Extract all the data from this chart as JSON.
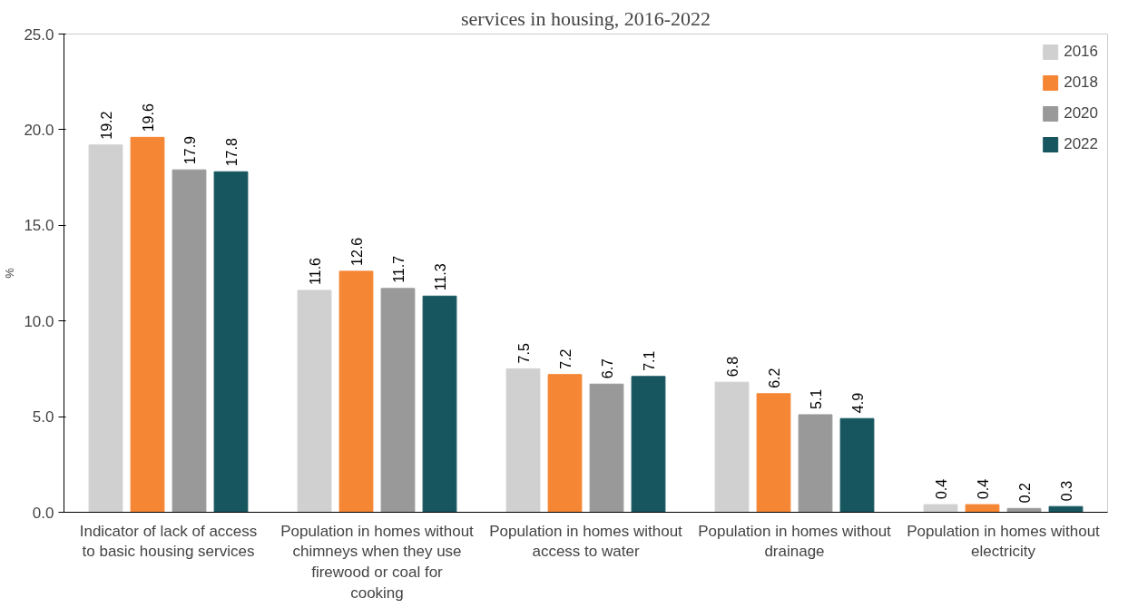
{
  "chart_data": {
    "type": "bar",
    "title": "services in housing, 2016-2022",
    "ylabel": "%",
    "categories": [
      "Indicator of lack of access to basic housing services",
      "Population in homes without chimneys when they use firewood or coal for cooking",
      "Population in homes without access to water",
      "Population in homes without drainage",
      "Population in homes without electricity"
    ],
    "series": [
      {
        "name": "2016",
        "color": "#d0d0d0",
        "values": [
          19.2,
          11.6,
          7.5,
          6.8,
          0.4
        ]
      },
      {
        "name": "2018",
        "color": "#f58634",
        "values": [
          19.6,
          12.6,
          7.2,
          6.2,
          0.4
        ]
      },
      {
        "name": "2020",
        "color": "#999999",
        "values": [
          17.9,
          11.7,
          6.7,
          5.1,
          0.2
        ]
      },
      {
        "name": "2022",
        "color": "#17565f",
        "values": [
          17.8,
          11.3,
          7.1,
          4.9,
          0.3
        ]
      }
    ],
    "ylim": [
      0,
      25
    ],
    "yticks": [
      {
        "value": 0,
        "label": "0.0"
      },
      {
        "value": 5,
        "label": "5.0"
      },
      {
        "value": 10,
        "label": "10.0"
      },
      {
        "value": 15,
        "label": "15.0"
      },
      {
        "value": 20,
        "label": "20.0"
      },
      {
        "value": 25,
        "label": "25.0"
      }
    ],
    "data_labels": true,
    "legend": "top right",
    "grid": false
  }
}
